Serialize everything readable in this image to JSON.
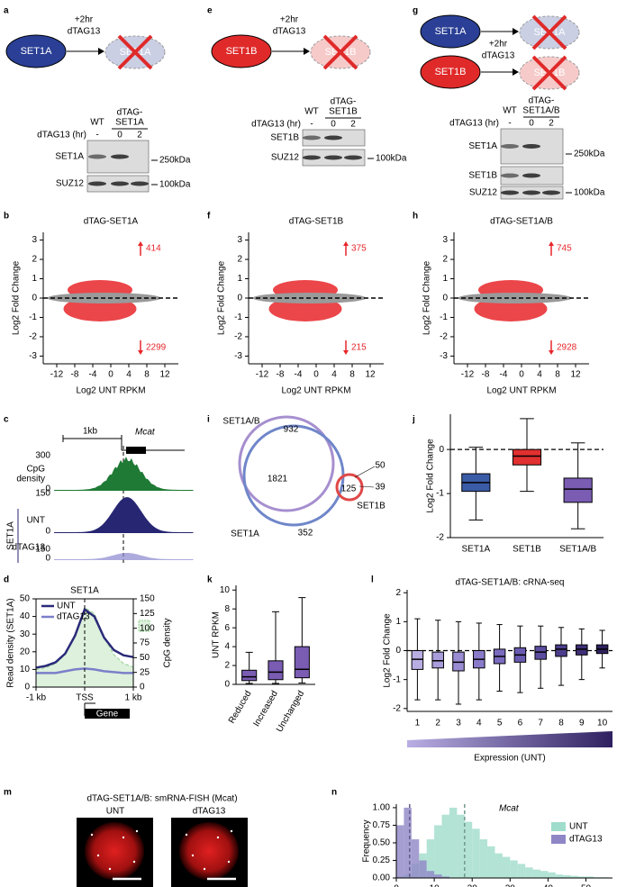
{
  "panel_labels": [
    "a",
    "e",
    "g",
    "b",
    "f",
    "h",
    "c",
    "i",
    "j",
    "d",
    "k",
    "l",
    "m",
    "n"
  ],
  "schematics": [
    {
      "treatment": [
        "+2hr",
        "dTAG13"
      ],
      "rows": [
        {
          "protein": "SET1A",
          "degraded": "SET1A",
          "color": "#2a3f95"
        }
      ]
    },
    {
      "treatment": [
        "+2hr",
        "dTAG13"
      ],
      "rows": [
        {
          "protein": "SET1B",
          "degraded": "SET1B",
          "color": "#e02a2a"
        }
      ]
    },
    {
      "treatment": [
        "+2hr",
        "dTAG13"
      ],
      "rows": [
        {
          "protein": "SET1A",
          "degraded": "SET1A",
          "color": "#2a3f95"
        },
        {
          "protein": "SET1B",
          "degraded": "SET1B",
          "color": "#e02a2a"
        }
      ]
    }
  ],
  "blots": [
    {
      "header": [
        "WT",
        "dTAG-",
        "SET1A"
      ],
      "time_label": "dTAG13 (hr)",
      "times": [
        "-",
        "0",
        "2"
      ],
      "rows": [
        "SET1A",
        "SUZ12"
      ],
      "markers": [
        "250kDa",
        "100kDa"
      ]
    },
    {
      "header": [
        "WT",
        "dTAG-",
        "SET1B"
      ],
      "time_label": "dTAG13 (hr)",
      "times": [
        "-",
        "0",
        "2"
      ],
      "rows": [
        "SET1B",
        "SUZ12"
      ],
      "markers": [
        "100kDa"
      ]
    },
    {
      "header": [
        "WT",
        "dTAG-",
        "SET1A/B"
      ],
      "time_label": "dTAG13 (hr)",
      "times": [
        "-",
        "0",
        "2"
      ],
      "rows": [
        "SET1A",
        "SET1B",
        "SUZ12"
      ],
      "markers": [
        "250kDa",
        "100kDa"
      ]
    }
  ],
  "track": {
    "scale": "1kb",
    "gene": "Mcat",
    "group": "SET1A",
    "tracks": [
      {
        "label": [
          "CpG",
          "density"
        ],
        "max": 300,
        "min": 0,
        "color": "#1e7a35"
      },
      {
        "label": [
          "UNT"
        ],
        "max": 150,
        "min": 0,
        "color": "#262673"
      },
      {
        "label": [
          "dTAG13"
        ],
        "max": 150,
        "min": 0,
        "color": "#8a88cf"
      }
    ]
  },
  "venn": {
    "sets": [
      "SET1A/B",
      "SET1A",
      "SET1B"
    ],
    "regions": [
      932,
      1821,
      125,
      50,
      39,
      352
    ]
  },
  "images": {
    "title": "dTAG-SET1A/B: smRNA-FISH (Mcat)",
    "labels": [
      "UNT",
      "dTAG13"
    ]
  },
  "chart_data": [
    {
      "type": "ma",
      "title": "dTAG-SET1A",
      "xlabel": "Log2 UNT RPKM",
      "ylabel": "Log2 Fold Change",
      "xlim": [
        -15,
        15
      ],
      "ylim": [
        -3.4,
        3.4
      ],
      "xticks": [
        -12,
        -8,
        -4,
        0,
        4,
        8,
        12
      ],
      "yticks": [
        -3,
        -2,
        -1,
        0,
        1,
        2,
        3
      ],
      "hline": 0,
      "up_count": 414,
      "down_count": 2299,
      "colors": {
        "changed": "#e8262a",
        "unchanged": "#9a9a9a"
      }
    },
    {
      "type": "ma",
      "title": "dTAG-SET1B",
      "xlabel": "Log2 UNT RPKM",
      "ylabel": "Log2 Fold Change",
      "xlim": [
        -15,
        15
      ],
      "ylim": [
        -3.4,
        3.4
      ],
      "xticks": [
        -12,
        -8,
        -4,
        0,
        4,
        8,
        12
      ],
      "yticks": [
        -3,
        -2,
        -1,
        0,
        1,
        2,
        3
      ],
      "hline": 0,
      "up_count": 375,
      "down_count": 215,
      "colors": {
        "changed": "#e8262a",
        "unchanged": "#9a9a9a"
      }
    },
    {
      "type": "ma",
      "title": "dTAG-SET1A/B",
      "xlabel": "Log2 UNT RPKM",
      "ylabel": "Log2 Fold Change",
      "xlim": [
        -15,
        15
      ],
      "ylim": [
        -3.4,
        3.4
      ],
      "xticks": [
        -12,
        -8,
        -4,
        0,
        4,
        8,
        12
      ],
      "yticks": [
        -3,
        -2,
        -1,
        0,
        1,
        2,
        3
      ],
      "hline": 0,
      "up_count": 745,
      "down_count": 2928,
      "colors": {
        "changed": "#e8262a",
        "unchanged": "#9a9a9a"
      }
    },
    {
      "type": "line",
      "title": "SET1A",
      "ylabel": "Read density (SET1A)",
      "annotation": "Gene",
      "x": [
        -1000,
        -800,
        -600,
        -400,
        -200,
        0,
        200,
        400,
        600,
        800,
        1000
      ],
      "xlim": [
        -1000,
        1000
      ],
      "xticks": [
        {
          "value": -1000,
          "label": "-1 kb"
        },
        {
          "value": 0,
          "label": "TSS"
        },
        {
          "value": 1000,
          "label": "1 kb"
        }
      ],
      "ylim": [
        0,
        50
      ],
      "yticks": [
        0,
        10,
        20,
        30,
        40,
        50
      ],
      "y2lim": [
        0,
        150
      ],
      "y2ticks": [
        0,
        25,
        50,
        75,
        100,
        125,
        150
      ],
      "vline": 0,
      "series": [
        {
          "name": "UNT",
          "color": "#2b2a7a",
          "values": [
            11,
            12,
            14,
            19,
            29,
            44,
            40,
            28,
            21,
            18,
            17
          ]
        },
        {
          "name": "dTAG13",
          "color": "#7b7fc9",
          "values": [
            8,
            8,
            8,
            9,
            10,
            10.5,
            10,
            9,
            8.5,
            8,
            8
          ]
        },
        {
          "name": "CpG density",
          "color": "#8fd08f",
          "axis": "y2",
          "values": [
            30,
            33,
            40,
            55,
            90,
            135,
            125,
            85,
            55,
            40,
            34
          ]
        }
      ]
    },
    {
      "type": "box",
      "ylabel": "Log2 Fold Change",
      "categories": [
        "SET1A",
        "SET1B",
        "SET1A/B"
      ],
      "ylim": [
        -2,
        0.8
      ],
      "yticks": [
        -2,
        -1,
        0
      ],
      "hline": 0,
      "colors": [
        "#3a5ba6",
        "#e03030",
        "#7a5cb3"
      ],
      "boxes": [
        [
          -1.6,
          -0.95,
          -0.75,
          -0.55,
          0.05
        ],
        [
          -0.95,
          -0.35,
          -0.15,
          0,
          0.7
        ],
        [
          -1.8,
          -1.2,
          -0.9,
          -0.65,
          0.15
        ]
      ]
    },
    {
      "type": "box",
      "ylabel": "UNT RPKM",
      "categories": [
        "Reduced",
        "Increased",
        "Unchanged"
      ],
      "xtick_rotation": -60,
      "ylim": [
        0,
        10.5
      ],
      "yticks": [
        0,
        2,
        4,
        6,
        8,
        10
      ],
      "colors": [
        "#7a5cb3",
        "#7a5cb3",
        "#7a5cb3"
      ],
      "boxes": [
        [
          0.1,
          0.4,
          0.8,
          1.5,
          3.4
        ],
        [
          0.1,
          0.5,
          1.3,
          2.5,
          7.7
        ],
        [
          0.15,
          0.7,
          1.6,
          4,
          9.2
        ]
      ]
    },
    {
      "type": "box",
      "title": "dTAG-SET1A/B: cRNA-seq",
      "ylabel": "Log2 Fold Change",
      "xlabel": "Expression (UNT)",
      "categories": [
        "1",
        "2",
        "3",
        "4",
        "5",
        "6",
        "7",
        "8",
        "9",
        "10"
      ],
      "ylim": [
        -2.1,
        2.1
      ],
      "yticks": [
        -2,
        -1,
        0,
        1,
        2
      ],
      "hline": 0,
      "colors": [
        "#b9aee3",
        "#a99ddb",
        "#9a8cd3",
        "#8a7bca",
        "#7a6bbf",
        "#6a5bb1",
        "#5b4ca0",
        "#4c3d8c",
        "#3e2f76",
        "#2f2160"
      ],
      "boxes": [
        [
          -1.7,
          -0.65,
          -0.3,
          0,
          1.1
        ],
        [
          -1.7,
          -0.6,
          -0.35,
          -0.05,
          1.05
        ],
        [
          -1.85,
          -0.7,
          -0.4,
          -0.05,
          1
        ],
        [
          -1.7,
          -0.6,
          -0.3,
          0,
          0.95
        ],
        [
          -1.4,
          -0.45,
          -0.2,
          0.05,
          0.9
        ],
        [
          -1.45,
          -0.4,
          -0.15,
          0.1,
          0.85
        ],
        [
          -1.3,
          -0.3,
          -0.05,
          0.15,
          0.85
        ],
        [
          -1.2,
          -0.2,
          0.05,
          0.2,
          0.8
        ],
        [
          -1,
          -0.15,
          0.05,
          0.2,
          0.75
        ],
        [
          -0.6,
          -0.1,
          0.05,
          0.2,
          0.7
        ]
      ]
    },
    {
      "type": "histogram",
      "title": "Mcat",
      "ylabel": "Frequency",
      "xlim": [
        0,
        57
      ],
      "ylim": [
        0,
        1.05
      ],
      "xticks": [
        0,
        10,
        20,
        30,
        40,
        50
      ],
      "yticks": [
        {
          "value": 0,
          "label": "0.00"
        },
        {
          "value": 0.25,
          "label": "0.25"
        },
        {
          "value": 0.5,
          "label": "0.50"
        },
        {
          "value": 0.75,
          "label": "0.75"
        },
        {
          "value": 1,
          "label": "1.00"
        }
      ],
      "bins": [
        0,
        2,
        4,
        6,
        8,
        10,
        12,
        14,
        16,
        18,
        20,
        22,
        24,
        26,
        28,
        30,
        32,
        34,
        36,
        38,
        40,
        42,
        44,
        46,
        48,
        50,
        52,
        54,
        56
      ],
      "series": [
        {
          "name": "UNT",
          "color": "#9fdccb",
          "mean": 18,
          "values": [
            0.02,
            0.05,
            0.2,
            0.35,
            0.55,
            0.75,
            0.9,
            1,
            0.9,
            0.8,
            0.7,
            0.55,
            0.45,
            0.35,
            0.3,
            0.25,
            0.2,
            0.15,
            0.12,
            0.1,
            0.08,
            0.05,
            0.04,
            0.03,
            0.02,
            0.02,
            0.01,
            0.01
          ]
        },
        {
          "name": "dTAG13",
          "color": "#8f86c6",
          "mean": 3.5,
          "values": [
            0.75,
            1,
            0.55,
            0.25,
            0.1,
            0.05,
            0.02,
            0,
            0,
            0,
            0,
            0,
            0,
            0,
            0,
            0,
            0,
            0,
            0,
            0,
            0,
            0,
            0,
            0,
            0,
            0,
            0,
            0
          ]
        }
      ]
    }
  ]
}
